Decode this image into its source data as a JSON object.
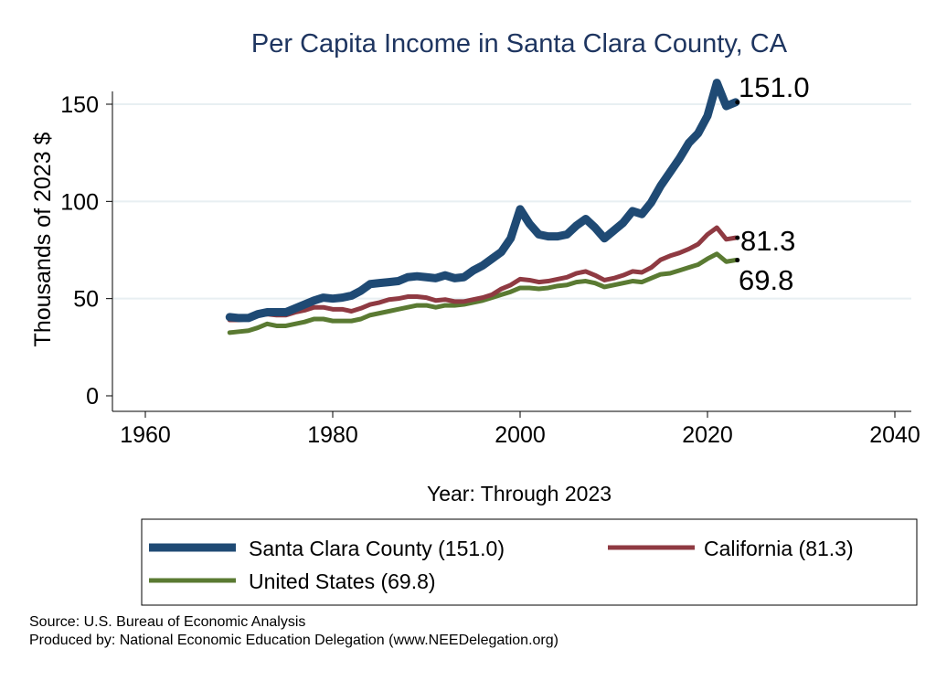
{
  "chart_data": {
    "type": "line",
    "title": "Per Capita Income in Santa Clara County, CA",
    "xlabel": "Year: Through 2023",
    "ylabel": "Thousands of 2023 $",
    "xlim": [
      1960,
      2040
    ],
    "ylim": [
      0,
      160
    ],
    "xticks": [
      1960,
      1980,
      2000,
      2020,
      2040
    ],
    "yticks": [
      0,
      50,
      100,
      150
    ],
    "grid": true,
    "legend_position": "bottom",
    "x": [
      1969,
      1970,
      1971,
      1972,
      1973,
      1974,
      1975,
      1976,
      1977,
      1978,
      1979,
      1980,
      1981,
      1982,
      1983,
      1984,
      1985,
      1986,
      1987,
      1988,
      1989,
      1990,
      1991,
      1992,
      1993,
      1994,
      1995,
      1996,
      1997,
      1998,
      1999,
      2000,
      2001,
      2002,
      2003,
      2004,
      2005,
      2006,
      2007,
      2008,
      2009,
      2010,
      2011,
      2012,
      2013,
      2014,
      2015,
      2016,
      2017,
      2018,
      2019,
      2020,
      2021,
      2022,
      2023
    ],
    "series": [
      {
        "name": "Santa Clara County (151.0)",
        "color": "#1f4a74",
        "end_label": "151.0",
        "values": [
          40.5,
          40,
          40,
          42,
          43,
          43,
          43,
          45,
          47,
          49,
          50.5,
          50,
          50.5,
          51.5,
          54,
          57.5,
          58,
          58.5,
          59,
          61,
          61.5,
          61,
          60.5,
          62,
          60.5,
          61,
          64.5,
          67,
          70.5,
          74,
          81,
          96,
          88.5,
          83,
          82,
          82,
          83,
          87.5,
          91,
          86.5,
          81,
          85,
          89,
          95,
          93.5,
          99.5,
          108,
          115,
          122,
          130,
          135,
          144,
          161,
          149,
          151.0
        ]
      },
      {
        "name": "California (81.3)",
        "color": "#8f3a42",
        "end_label": "81.3",
        "values": [
          39,
          39,
          39.5,
          41.5,
          42,
          41.5,
          41.5,
          43,
          44,
          45.5,
          45.5,
          44.5,
          44.5,
          43.5,
          45,
          47,
          48,
          49.5,
          50,
          51,
          51,
          50.5,
          49,
          49.5,
          48.5,
          48.5,
          49.5,
          50.5,
          52,
          55,
          57,
          60,
          59.5,
          58.5,
          59,
          60,
          61,
          63,
          64,
          62,
          59.5,
          60.5,
          62,
          64,
          63.5,
          66,
          70,
          72,
          73.5,
          75.5,
          78,
          83,
          86.5,
          80.5,
          81.3
        ]
      },
      {
        "name": "United States (69.8)",
        "color": "#5a7a32",
        "end_label": "69.8",
        "values": [
          32.5,
          33,
          33.5,
          35,
          37,
          36,
          36,
          37,
          38,
          39.5,
          39.5,
          38.5,
          38.5,
          38.5,
          39.5,
          41.5,
          42.5,
          43.5,
          44.5,
          45.5,
          46.5,
          46.5,
          45.5,
          46.5,
          46.5,
          47,
          48,
          49,
          50.5,
          52,
          53.5,
          55.5,
          55.5,
          55,
          55.5,
          56.5,
          57,
          58.5,
          59,
          58,
          56,
          57,
          58,
          59,
          58.5,
          60.5,
          62.5,
          63,
          64.5,
          66,
          67.5,
          70.5,
          73,
          69,
          69.8
        ]
      }
    ]
  },
  "footer": {
    "source": "Source: U.S. Bureau of Economic Analysis",
    "produced_by": "Produced by: National Economic Education Delegation (www.NEEDelegation.org)"
  }
}
